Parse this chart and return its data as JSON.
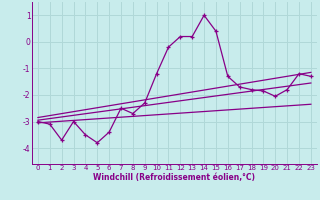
{
  "xlabel": "Windchill (Refroidissement éolien,°C)",
  "background_color": "#c8ecec",
  "grid_color": "#b0d8d8",
  "line_color": "#880088",
  "xlim": [
    -0.5,
    23.5
  ],
  "ylim": [
    -4.6,
    1.5
  ],
  "yticks": [
    -4,
    -3,
    -2,
    -1,
    0,
    1
  ],
  "xticks": [
    0,
    1,
    2,
    3,
    4,
    5,
    6,
    7,
    8,
    9,
    10,
    11,
    12,
    13,
    14,
    15,
    16,
    17,
    18,
    19,
    20,
    21,
    22,
    23
  ],
  "main_x": [
    0,
    1,
    2,
    3,
    4,
    5,
    6,
    7,
    8,
    9,
    10,
    11,
    12,
    13,
    14,
    15,
    16,
    17,
    18,
    19,
    20,
    21,
    22,
    23
  ],
  "main_y": [
    -3.0,
    -3.1,
    -3.7,
    -3.0,
    -3.5,
    -3.8,
    -3.4,
    -2.5,
    -2.7,
    -2.3,
    -1.2,
    -0.2,
    0.2,
    0.2,
    1.0,
    0.4,
    -1.3,
    -1.7,
    -1.8,
    -1.85,
    -2.05,
    -1.8,
    -1.2,
    -1.3
  ],
  "reg_line1_x": [
    0,
    23
  ],
  "reg_line1_y": [
    -3.05,
    -2.35
  ],
  "reg_line2_x": [
    0,
    23
  ],
  "reg_line2_y": [
    -2.95,
    -1.55
  ],
  "reg_line3_x": [
    0,
    23
  ],
  "reg_line3_y": [
    -2.85,
    -1.15
  ],
  "xlabel_fontsize": 5.5,
  "tick_fontsize": 5.0
}
